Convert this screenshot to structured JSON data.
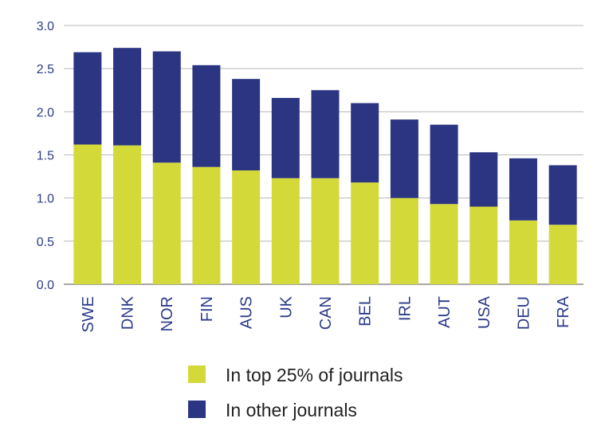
{
  "chart_data": {
    "type": "bar",
    "stacked": true,
    "categories": [
      "SWE",
      "DNK",
      "NOR",
      "FIN",
      "AUS",
      "UK",
      "CAN",
      "BEL",
      "IRL",
      "AUT",
      "USA",
      "DEU",
      "FRA"
    ],
    "series": [
      {
        "name": "In top 25% of journals",
        "color": "#d4d93a",
        "values": [
          1.62,
          1.61,
          1.41,
          1.36,
          1.32,
          1.23,
          1.23,
          1.18,
          1.0,
          0.93,
          0.9,
          0.74,
          0.69
        ]
      },
      {
        "name": "In other journals",
        "color": "#2c3582",
        "values": [
          1.07,
          1.13,
          1.29,
          1.18,
          1.06,
          0.93,
          1.02,
          0.92,
          0.91,
          0.92,
          0.63,
          0.72,
          0.69
        ]
      }
    ],
    "ylim": [
      0,
      3.0
    ],
    "yticks": [
      "0.0",
      "0.5",
      "1.0",
      "1.5",
      "2.0",
      "2.5",
      "3.0"
    ],
    "grid": true,
    "legend": "bottom",
    "title": "",
    "xlabel": "",
    "ylabel": ""
  }
}
